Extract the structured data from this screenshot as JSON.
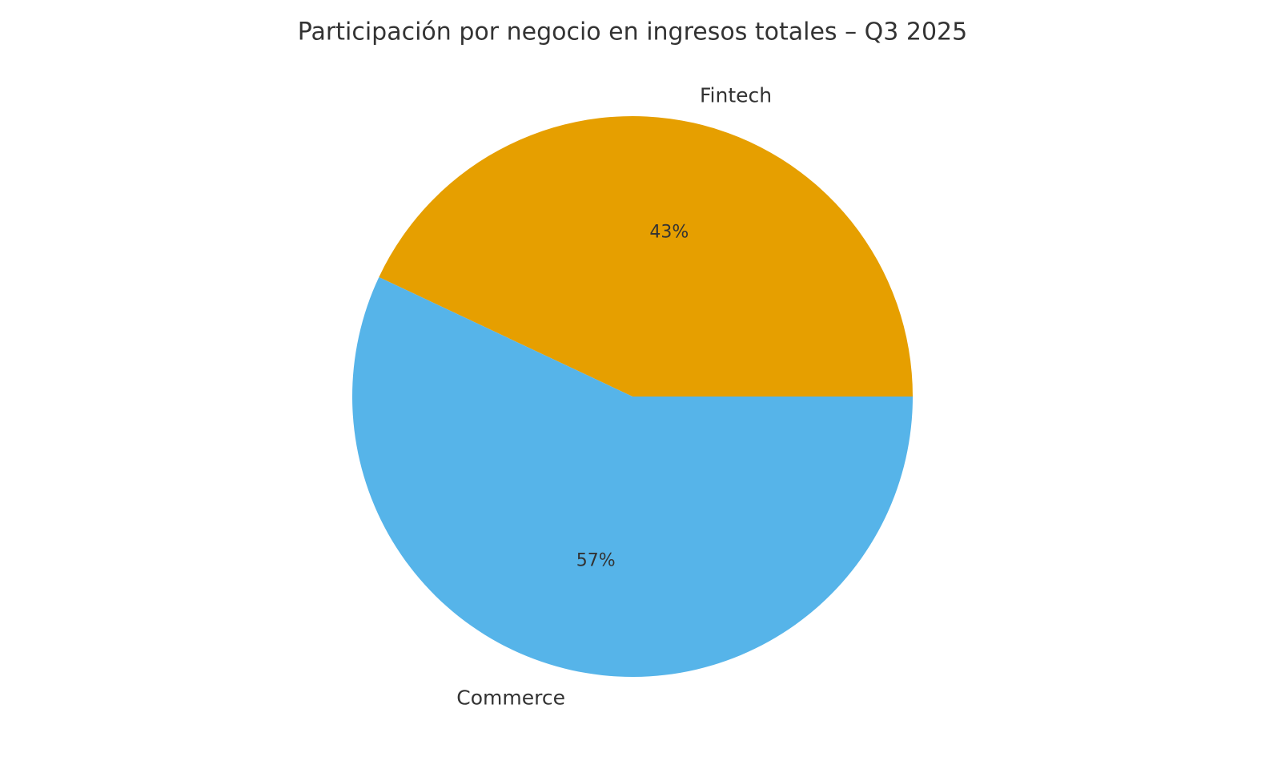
{
  "title": "Participación por negocio en ingresos totales – Q3 2025",
  "chart_data": {
    "type": "pie",
    "title": "Participación por negocio en ingresos totales – Q3 2025",
    "labels": [
      "Fintech",
      "Commerce"
    ],
    "values": [
      43,
      57
    ],
    "pct_labels": [
      "43%",
      "57%"
    ],
    "colors": [
      "#E69F00",
      "#56B4E9"
    ],
    "text_color": "#333333",
    "background": "#FFFFFF",
    "start_angle": 0,
    "direction": "counterclockwise",
    "label_distance": 1.1,
    "pct_distance": 0.6,
    "legend": "none",
    "grid": false
  }
}
